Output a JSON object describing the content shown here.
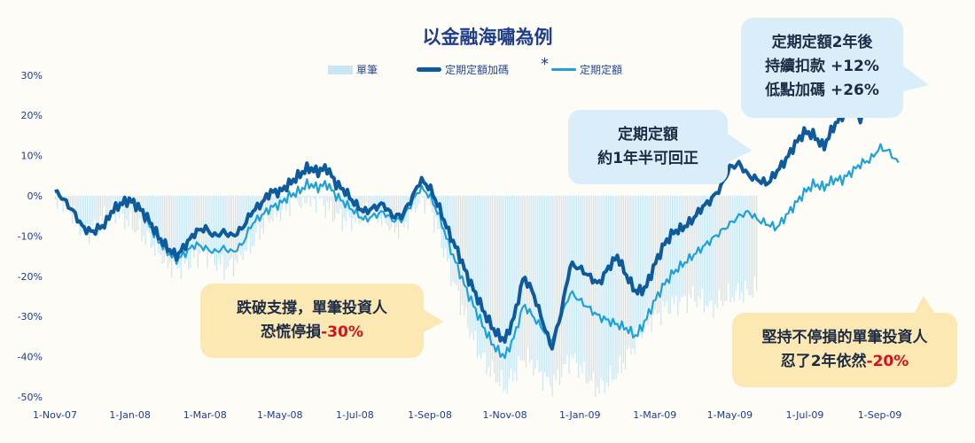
{
  "chart_data": {
    "type": "line",
    "title": "以金融海嘯為例",
    "xlabel": "",
    "ylabel": "",
    "ylim": [
      -50,
      30
    ],
    "y_ticks": [
      "30%",
      "20%",
      "10%",
      "0%",
      "-10%",
      "-20%",
      "-30%",
      "-40%",
      "-50%"
    ],
    "x_ticks": [
      "1-Nov-07",
      "1-Jan-08",
      "1-Mar-08",
      "1-May-08",
      "1-Jul-08",
      "1-Sep-08",
      "1-Nov-08",
      "1-Jan-09",
      "1-Mar-09",
      "1-May-09",
      "1-Jul-09",
      "1-Sep-09"
    ],
    "grid": false,
    "legend_position": "top-center",
    "legend": [
      {
        "label": "單筆",
        "style": "bar",
        "color": "#c9e6f4"
      },
      {
        "label": "定期定額加碼",
        "style": "line-thick",
        "color": "#0d5a9c"
      },
      {
        "label": "定期定額",
        "style": "line",
        "color": "#1ea0d8"
      }
    ],
    "legend_asterisk": "*",
    "series": [
      {
        "name": "單筆",
        "style": "bar",
        "color": "#c9e6f4",
        "points": [
          [
            0,
            1
          ],
          [
            0.3,
            0
          ],
          [
            1,
            -5
          ],
          [
            1.5,
            -9
          ],
          [
            2,
            -8
          ],
          [
            2.7,
            -5
          ],
          [
            3,
            -3
          ],
          [
            3.5,
            -5
          ],
          [
            4,
            -7
          ],
          [
            4.5,
            -9
          ],
          [
            5,
            -11
          ],
          [
            5.5,
            -14
          ],
          [
            6,
            -17
          ],
          [
            6.5,
            -18
          ],
          [
            7,
            -17
          ],
          [
            7.5,
            -15
          ],
          [
            8,
            -14
          ],
          [
            8.5,
            -16
          ],
          [
            9,
            -18
          ],
          [
            9.5,
            -17
          ],
          [
            10,
            -14
          ],
          [
            10.5,
            -12
          ],
          [
            11,
            -8
          ],
          [
            11.5,
            -5
          ],
          [
            12,
            -4
          ],
          [
            12.5,
            -2
          ],
          [
            13,
            0
          ],
          [
            13.5,
            1
          ],
          [
            14,
            -1
          ],
          [
            14.5,
            -3
          ],
          [
            15,
            -5
          ],
          [
            15.5,
            -6
          ],
          [
            16,
            -6
          ],
          [
            16.5,
            -5
          ],
          [
            17,
            -4
          ],
          [
            17.5,
            -6
          ],
          [
            18,
            -8
          ],
          [
            18.5,
            -8
          ],
          [
            19,
            -4
          ],
          [
            19.5,
            0
          ],
          [
            20,
            -3
          ],
          [
            20.5,
            -10
          ],
          [
            21,
            -18
          ],
          [
            21.5,
            -25
          ],
          [
            22,
            -32
          ],
          [
            22.5,
            -38
          ],
          [
            23,
            -42
          ],
          [
            23.5,
            -45
          ],
          [
            24,
            -48
          ],
          [
            24.5,
            -44
          ],
          [
            25,
            -40
          ],
          [
            25.5,
            -42
          ],
          [
            26,
            -45
          ],
          [
            26.5,
            -47
          ],
          [
            27,
            -44
          ],
          [
            27.5,
            -40
          ],
          [
            28,
            -43
          ],
          [
            28.5,
            -46
          ],
          [
            29,
            -48
          ],
          [
            29.5,
            -46
          ],
          [
            30,
            -44
          ],
          [
            30.5,
            -40
          ],
          [
            31,
            -36
          ],
          [
            31.5,
            -32
          ],
          [
            32,
            -30
          ],
          [
            32.5,
            -28
          ],
          [
            33,
            -27
          ],
          [
            33.5,
            -26
          ],
          [
            34,
            -25
          ],
          [
            34.5,
            -26
          ],
          [
            35,
            -28
          ],
          [
            35.5,
            -26
          ],
          [
            36,
            -25
          ],
          [
            36.5,
            -24
          ],
          [
            37,
            -24
          ],
          [
            37.5,
            -23
          ]
        ]
      },
      {
        "name": "定期定額加碼",
        "style": "line-thick",
        "color": "#0d5a9c",
        "points": [
          [
            0,
            1
          ],
          [
            0.3,
            0
          ],
          [
            1,
            -4
          ],
          [
            1.5,
            -8
          ],
          [
            2,
            -9
          ],
          [
            2.7,
            -7
          ],
          [
            3,
            -4
          ],
          [
            3.5,
            -2
          ],
          [
            4,
            -1
          ],
          [
            4.5,
            -3
          ],
          [
            5,
            -6
          ],
          [
            5.5,
            -10
          ],
          [
            6,
            -13
          ],
          [
            6.5,
            -15
          ],
          [
            7,
            -12
          ],
          [
            7.5,
            -9
          ],
          [
            8,
            -8
          ],
          [
            8.5,
            -10
          ],
          [
            9,
            -9
          ],
          [
            9.5,
            -10
          ],
          [
            10,
            -8
          ],
          [
            10.5,
            -4
          ],
          [
            11,
            -2
          ],
          [
            11.5,
            1
          ],
          [
            12,
            1
          ],
          [
            12.5,
            3
          ],
          [
            13,
            5
          ],
          [
            13.5,
            7
          ],
          [
            14,
            6
          ],
          [
            14.5,
            7
          ],
          [
            15,
            3
          ],
          [
            15.5,
            1
          ],
          [
            16,
            -2
          ],
          [
            16.5,
            -4
          ],
          [
            17,
            -3
          ],
          [
            17.5,
            -2
          ],
          [
            18,
            -5
          ],
          [
            18.5,
            -5
          ],
          [
            19,
            -1
          ],
          [
            19.5,
            4
          ],
          [
            20,
            2
          ],
          [
            20.5,
            -3
          ],
          [
            21,
            -9
          ],
          [
            21.5,
            -14
          ],
          [
            22,
            -20
          ],
          [
            22.5,
            -25
          ],
          [
            23,
            -30
          ],
          [
            23.5,
            -34
          ],
          [
            24,
            -36
          ],
          [
            24.5,
            -30
          ],
          [
            25,
            -20
          ],
          [
            25.5,
            -24
          ],
          [
            26,
            -31
          ],
          [
            26.5,
            -38
          ],
          [
            27,
            -29
          ],
          [
            27.5,
            -17
          ],
          [
            28,
            -18
          ],
          [
            28.5,
            -20
          ],
          [
            29,
            -22
          ],
          [
            29.5,
            -18
          ],
          [
            30,
            -15
          ],
          [
            30.5,
            -20
          ],
          [
            31,
            -24
          ],
          [
            31.5,
            -23
          ],
          [
            32,
            -17
          ],
          [
            32.5,
            -12
          ],
          [
            33,
            -9
          ],
          [
            33.5,
            -8
          ],
          [
            34,
            -6
          ],
          [
            34.5,
            -3
          ],
          [
            35,
            -1
          ],
          [
            35.5,
            2
          ],
          [
            36,
            7
          ],
          [
            36.5,
            8
          ],
          [
            37,
            5
          ],
          [
            37.5,
            4
          ],
          [
            38,
            3
          ],
          [
            38.5,
            6
          ],
          [
            39,
            9
          ],
          [
            39.5,
            13
          ],
          [
            40,
            16
          ],
          [
            40.5,
            15
          ],
          [
            41,
            12
          ],
          [
            41.5,
            17
          ],
          [
            42,
            20
          ],
          [
            42.5,
            22
          ],
          [
            43,
            19
          ],
          [
            43.5,
            23
          ],
          [
            44,
            26
          ],
          [
            44.5,
            24
          ],
          [
            45,
            23
          ]
        ]
      },
      {
        "name": "定期定額",
        "style": "line",
        "color": "#1ea0d8",
        "points": [
          [
            0,
            1
          ],
          [
            0.3,
            0
          ],
          [
            1,
            -4
          ],
          [
            1.5,
            -8
          ],
          [
            2,
            -9
          ],
          [
            2.7,
            -7
          ],
          [
            3,
            -4
          ],
          [
            3.5,
            -2
          ],
          [
            4,
            -1
          ],
          [
            4.5,
            -3
          ],
          [
            5,
            -7
          ],
          [
            5.5,
            -11
          ],
          [
            6,
            -14
          ],
          [
            6.5,
            -16
          ],
          [
            7,
            -14
          ],
          [
            7.5,
            -12
          ],
          [
            8,
            -13
          ],
          [
            8.5,
            -14
          ],
          [
            9,
            -13
          ],
          [
            9.5,
            -14
          ],
          [
            10,
            -12
          ],
          [
            10.5,
            -7
          ],
          [
            11,
            -5
          ],
          [
            11.5,
            -3
          ],
          [
            12,
            -2
          ],
          [
            12.5,
            0
          ],
          [
            13,
            1
          ],
          [
            13.5,
            3
          ],
          [
            14,
            2
          ],
          [
            14.5,
            3
          ],
          [
            15,
            0
          ],
          [
            15.5,
            -2
          ],
          [
            16,
            -4
          ],
          [
            16.5,
            -6
          ],
          [
            17,
            -5
          ],
          [
            17.5,
            -4
          ],
          [
            18,
            -6
          ],
          [
            18.5,
            -6
          ],
          [
            19,
            -2
          ],
          [
            19.5,
            2
          ],
          [
            20,
            0
          ],
          [
            20.5,
            -5
          ],
          [
            21,
            -12
          ],
          [
            21.5,
            -18
          ],
          [
            22,
            -24
          ],
          [
            22.5,
            -29
          ],
          [
            23,
            -34
          ],
          [
            23.5,
            -38
          ],
          [
            24,
            -40
          ],
          [
            24.5,
            -35
          ],
          [
            25,
            -27
          ],
          [
            25.5,
            -30
          ],
          [
            26,
            -33
          ],
          [
            26.5,
            -36
          ],
          [
            27,
            -30
          ],
          [
            27.5,
            -24
          ],
          [
            28,
            -26
          ],
          [
            28.5,
            -28
          ],
          [
            29,
            -30
          ],
          [
            29.5,
            -31
          ],
          [
            30,
            -32
          ],
          [
            30.5,
            -33
          ],
          [
            31,
            -35
          ],
          [
            31.5,
            -31
          ],
          [
            32,
            -26
          ],
          [
            32.5,
            -22
          ],
          [
            33,
            -19
          ],
          [
            33.5,
            -17
          ],
          [
            34,
            -15
          ],
          [
            34.5,
            -13
          ],
          [
            35,
            -11
          ],
          [
            35.5,
            -9
          ],
          [
            36,
            -7
          ],
          [
            36.5,
            -5
          ],
          [
            37,
            -4
          ],
          [
            37.5,
            -6
          ],
          [
            38,
            -7
          ],
          [
            38.5,
            -8
          ],
          [
            39,
            -5
          ],
          [
            39.5,
            -2
          ],
          [
            40,
            1
          ],
          [
            40.5,
            3
          ],
          [
            41,
            2
          ],
          [
            41.5,
            4
          ],
          [
            42,
            4
          ],
          [
            42.5,
            6
          ],
          [
            43,
            8
          ],
          [
            43.5,
            9
          ],
          [
            44,
            12
          ],
          [
            44.5,
            11
          ],
          [
            45,
            8
          ]
        ]
      }
    ]
  },
  "callouts": {
    "dca_recover": {
      "line1": "定期定額",
      "line2": "約1年半可回正"
    },
    "dca_boost": {
      "line1": "定期定額2年後",
      "line2": "持續扣款  +12%",
      "line3": "低點加碼  +26%"
    },
    "lump_panic": {
      "line1": "跌破支撐，單筆投資人",
      "line2_prefix": "恐慌停損",
      "line2_value": "-30%"
    },
    "lump_hold": {
      "line1": "堅持不停損的單筆投資人",
      "line2_prefix": "忍了2年依然",
      "line2_value": "-20%"
    }
  },
  "colors": {
    "bar": "#c9e6f4",
    "dark_line": "#0d5a9c",
    "light_line": "#1ea0d8",
    "axis_text": "#1f3d8a"
  }
}
